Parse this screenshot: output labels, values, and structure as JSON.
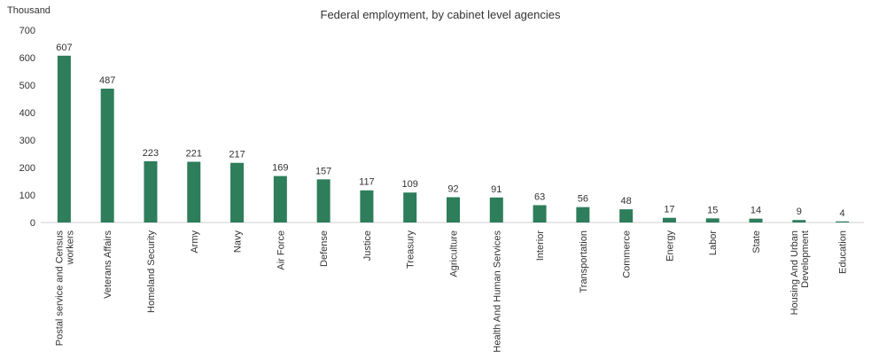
{
  "chart_data": {
    "type": "bar",
    "title": "Federal employment, by cabinet level agencies",
    "unit_label": "Thousand",
    "ylim": [
      0,
      700
    ],
    "yticks": [
      0,
      100,
      200,
      300,
      400,
      500,
      600,
      700
    ],
    "grid": false,
    "bar_color": "#2e7d5b",
    "categories": [
      [
        "Postal service and Census",
        "workers"
      ],
      [
        "Veterans Affairs"
      ],
      [
        "Homeland Security"
      ],
      [
        "Army"
      ],
      [
        "Navy"
      ],
      [
        "Air Force"
      ],
      [
        "Defense"
      ],
      [
        "Justice"
      ],
      [
        "Treasury"
      ],
      [
        "Agriculture"
      ],
      [
        "Health And Human Services"
      ],
      [
        "Interior"
      ],
      [
        "Transportation"
      ],
      [
        "Commerce"
      ],
      [
        "Energy"
      ],
      [
        "Labor"
      ],
      [
        "State"
      ],
      [
        "Housing And Urban",
        "Development"
      ],
      [
        "Education"
      ]
    ],
    "values": [
      607,
      487,
      223,
      221,
      217,
      169,
      157,
      117,
      109,
      92,
      91,
      63,
      56,
      48,
      17,
      15,
      14,
      9,
      4
    ]
  }
}
